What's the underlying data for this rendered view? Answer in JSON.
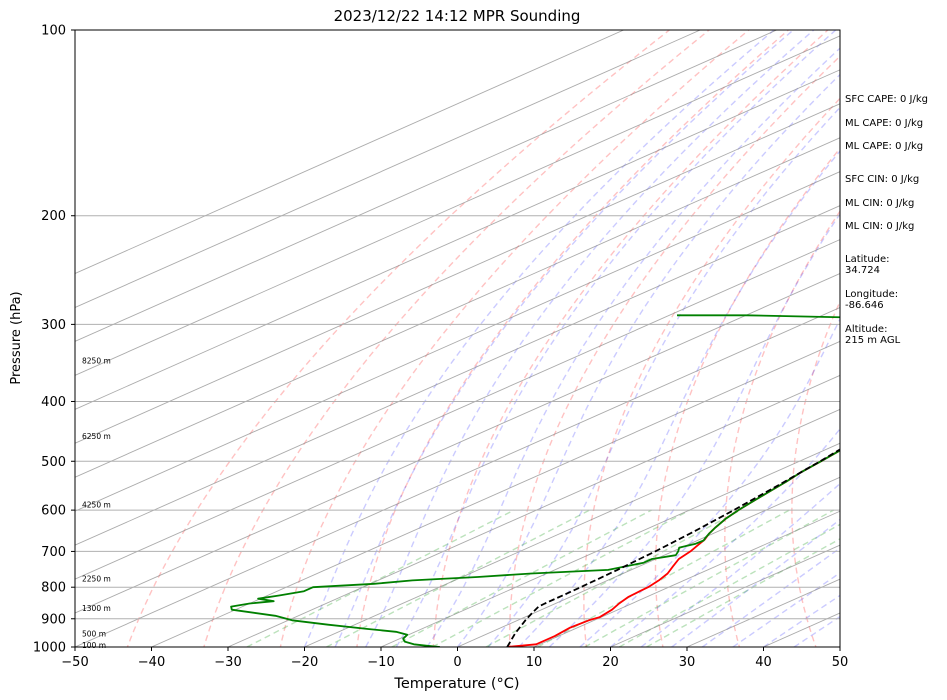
{
  "chart_data": {
    "type": "skew-t",
    "title": "2023/12/22 14:12 MPR Sounding",
    "xlabel": "Temperature (°C)",
    "ylabel": "Pressure (hPa)",
    "xlim": [
      -50,
      50
    ],
    "ylim": [
      1000,
      100
    ],
    "y_scale": "log",
    "x_ticks": [
      -50,
      -40,
      -30,
      -20,
      -10,
      0,
      10,
      20,
      30,
      40,
      50
    ],
    "y_ticks": [
      100,
      200,
      300,
      400,
      500,
      600,
      700,
      800,
      900,
      1000
    ],
    "grid": true,
    "series": [
      {
        "color": "#ff0000",
        "points": [
          [
            6.5,
            1000
          ],
          [
            9.5,
            990
          ],
          [
            9.5,
            960
          ],
          [
            9.0,
            930
          ],
          [
            9.3,
            905
          ],
          [
            9.8,
            895
          ],
          [
            9.2,
            870
          ],
          [
            8.3,
            850
          ],
          [
            7.6,
            830
          ],
          [
            7.4,
            812
          ],
          [
            7.3,
            800
          ],
          [
            6.7,
            780
          ],
          [
            5.8,
            760
          ],
          [
            4.4,
            740
          ],
          [
            3.0,
            720
          ],
          [
            2.3,
            700
          ],
          [
            1.5,
            685
          ],
          [
            0.7,
            670
          ],
          [
            -0.5,
            655
          ],
          [
            -1.5,
            640
          ],
          [
            -2.7,
            620
          ],
          [
            -3.6,
            600
          ],
          [
            -4.3,
            580
          ],
          [
            -5.0,
            560
          ],
          [
            -5.7,
            540
          ],
          [
            -6.6,
            520
          ],
          [
            -7.2,
            500
          ],
          [
            -7.9,
            480
          ],
          [
            -8.8,
            460
          ],
          [
            -9.6,
            440
          ],
          [
            -10.4,
            420
          ],
          [
            -11.2,
            400
          ],
          [
            -12.2,
            380
          ],
          [
            -13.3,
            360
          ],
          [
            -14.4,
            340
          ],
          [
            -15.3,
            325
          ],
          [
            -16.3,
            310
          ],
          [
            -17.3,
            300
          ],
          [
            -18.5,
            290
          ],
          [
            -19.5,
            280
          ],
          [
            -20.3,
            270
          ],
          [
            -21.1,
            262
          ]
        ]
      },
      {
        "color": "#008000",
        "points": [
          [
            -2.3,
            1000
          ],
          [
            -4.5,
            995
          ],
          [
            -6.5,
            990
          ],
          [
            -8.5,
            980
          ],
          [
            -9.5,
            970
          ],
          [
            -10.2,
            955
          ],
          [
            -12.5,
            945
          ],
          [
            -17.0,
            935
          ],
          [
            -23.5,
            920
          ],
          [
            -29.5,
            905
          ],
          [
            -33.0,
            890
          ],
          [
            -40.5,
            870
          ],
          [
            -41.5,
            860
          ],
          [
            -40.0,
            850
          ],
          [
            -37.5,
            843
          ],
          [
            -40.3,
            835
          ],
          [
            -38.5,
            825
          ],
          [
            -36.5,
            812
          ],
          [
            -36.5,
            800
          ],
          [
            -29.5,
            790
          ],
          [
            -25.5,
            780
          ],
          [
            -18.0,
            770
          ],
          [
            -12.0,
            760
          ],
          [
            -3.0,
            750
          ],
          [
            -0.5,
            730
          ],
          [
            -0.5,
            720
          ],
          [
            1.5,
            710
          ],
          [
            0.7,
            700
          ],
          [
            -0.3,
            690
          ],
          [
            0.7,
            680
          ],
          [
            0.8,
            672
          ],
          [
            0.3,
            666
          ],
          [
            -0.5,
            655
          ],
          [
            -1.5,
            640
          ],
          [
            -2.7,
            620
          ],
          [
            -3.6,
            600
          ],
          [
            -4.3,
            580
          ],
          [
            -5.0,
            560
          ],
          [
            -5.7,
            540
          ],
          [
            -6.6,
            520
          ],
          [
            -7.2,
            500
          ],
          [
            -7.9,
            480
          ],
          [
            -8.8,
            460
          ],
          [
            -9.6,
            440
          ],
          [
            -10.4,
            420
          ],
          [
            -11.2,
            400
          ],
          [
            -12.2,
            380
          ],
          [
            -13.3,
            360
          ],
          [
            -14.4,
            340
          ],
          [
            -15.3,
            325
          ],
          [
            -16.5,
            310
          ],
          [
            -17.5,
            305
          ],
          [
            -23.0,
            300
          ],
          [
            -32.0,
            295
          ],
          [
            -48.0,
            292
          ],
          [
            -60.0,
            290
          ],
          [
            -69.0,
            290
          ]
        ]
      },
      {
        "color": "#000000",
        "dash": "dashed",
        "points": [
          [
            6.5,
            1000
          ],
          [
            3.5,
            950
          ],
          [
            1.0,
            905
          ],
          [
            -0.3,
            880
          ],
          [
            -1.3,
            860
          ],
          [
            -1.4,
            850
          ],
          [
            -1.5,
            800
          ],
          [
            -1.8,
            750
          ],
          [
            -2.3,
            700
          ],
          [
            -3.1,
            650
          ],
          [
            -4.2,
            600
          ],
          [
            -5.6,
            550
          ],
          [
            -7.3,
            500
          ],
          [
            -9.4,
            450
          ],
          [
            -12.1,
            400
          ],
          [
            -15.5,
            350
          ],
          [
            -20.0,
            300
          ],
          [
            -24.0,
            265
          ]
        ]
      }
    ],
    "height_labels": [
      {
        "text": "100 m",
        "p": 992
      },
      {
        "text": "500 m",
        "p": 950
      },
      {
        "text": "1300 m",
        "p": 865
      },
      {
        "text": "2250 m",
        "p": 775
      },
      {
        "text": "4250 m",
        "p": 588
      },
      {
        "text": "6250 m",
        "p": 455
      },
      {
        "text": "8250 m",
        "p": 343
      }
    ],
    "annotations": [
      "SFC CAPE: 0 J/kg",
      "ML CAPE: 0 J/kg",
      "ML CAPE: 0 J/kg",
      "SFC CIN: 0 J/kg",
      "ML CIN: 0 J/kg",
      "ML CIN: 0 J/kg",
      "Latitude:\n34.724",
      "Longitude:\n-86.646",
      "Altitude:\n215 m AGL"
    ]
  }
}
